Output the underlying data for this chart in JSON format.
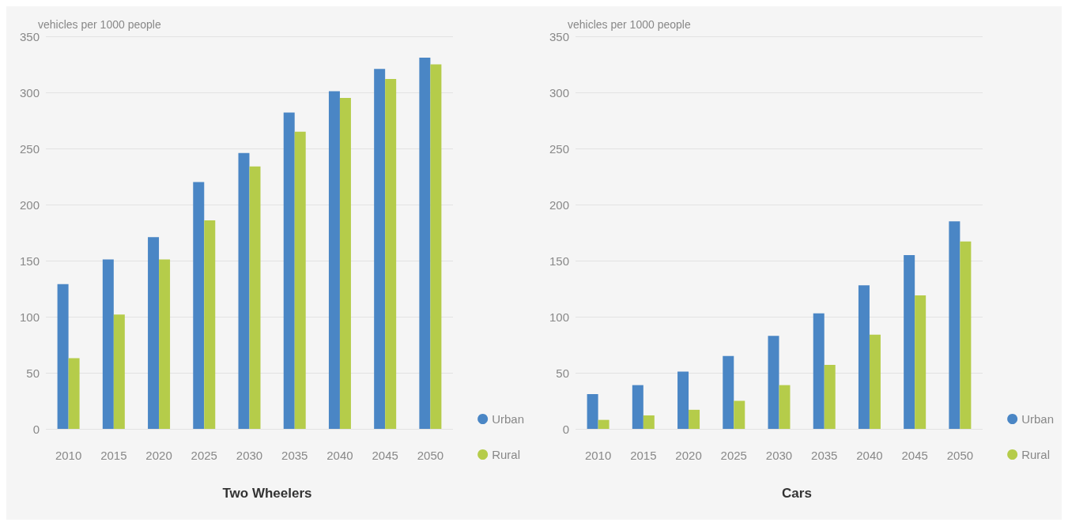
{
  "chart_data": [
    {
      "type": "bar",
      "title": "Two Wheelers",
      "ylabel": "vehicles per 1000 people",
      "categories": [
        "2010",
        "2015",
        "2020",
        "2025",
        "2030",
        "2035",
        "2040",
        "2045",
        "2050"
      ],
      "series": [
        {
          "name": "Urban",
          "color": "#4a86c5",
          "values": [
            129,
            151,
            171,
            220,
            246,
            282,
            301,
            321,
            331
          ]
        },
        {
          "name": "Rural",
          "color": "#b5cc4a",
          "values": [
            63,
            102,
            151,
            186,
            234,
            265,
            295,
            312,
            325
          ]
        }
      ],
      "ylim": [
        0,
        350
      ],
      "yticks": [
        0,
        50,
        100,
        150,
        200,
        250,
        300,
        350
      ],
      "grid": "y",
      "legend": "bottom right"
    },
    {
      "type": "bar",
      "title": "Cars",
      "ylabel": "vehicles per 1000 people",
      "categories": [
        "2010",
        "2015",
        "2020",
        "2025",
        "2030",
        "2035",
        "2040",
        "2045",
        "2050"
      ],
      "series": [
        {
          "name": "Urban",
          "color": "#4a86c5",
          "values": [
            31,
            39,
            51,
            65,
            83,
            103,
            128,
            155,
            185
          ]
        },
        {
          "name": "Rural",
          "color": "#b5cc4a",
          "values": [
            8,
            12,
            17,
            25,
            39,
            57,
            84,
            119,
            167
          ]
        }
      ],
      "ylim": [
        0,
        350
      ],
      "yticks": [
        0,
        50,
        100,
        150,
        200,
        250,
        300,
        350
      ],
      "grid": "y",
      "legend": "bottom right"
    }
  ]
}
